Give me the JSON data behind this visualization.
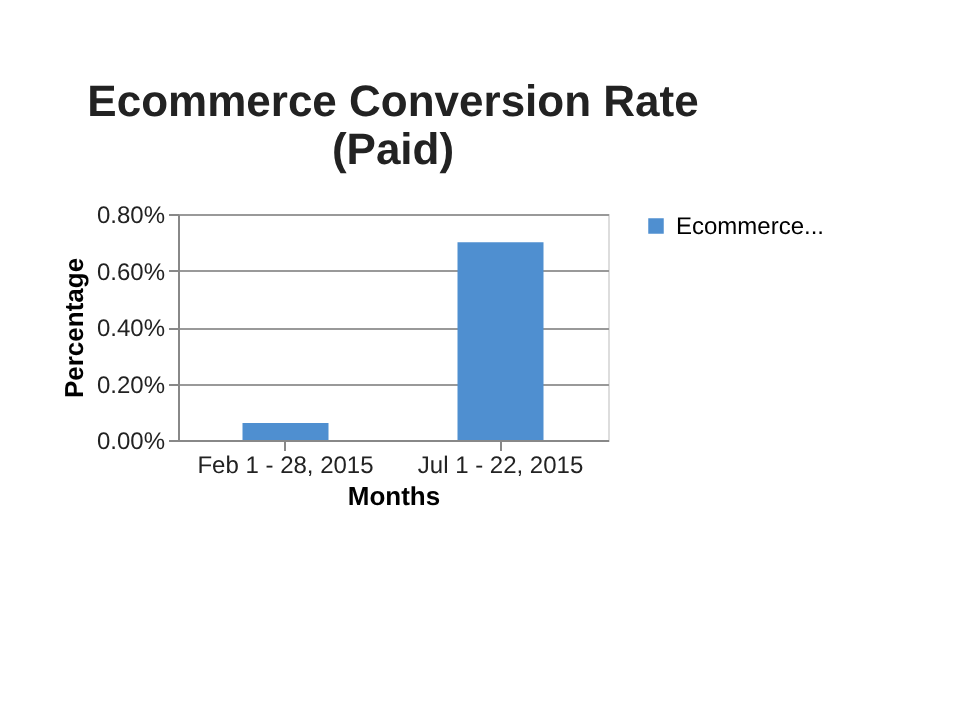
{
  "chart_data": {
    "type": "bar",
    "title": "Ecommerce Conversion Rate (Paid)",
    "xlabel": "Months",
    "ylabel": "Percentage",
    "categories": [
      "Feb 1 - 28, 2015",
      "Jul 1 - 22, 2015"
    ],
    "series": [
      {
        "name": "Ecommerce...",
        "color": "#4f8fd0",
        "values": [
          0.06,
          0.7
        ]
      }
    ],
    "ylim": [
      0,
      0.8
    ],
    "yticks": [
      {
        "value": 0,
        "label": "0.00%"
      },
      {
        "value": 0.2,
        "label": "0.20%"
      },
      {
        "value": 0.4,
        "label": "0.40%"
      },
      {
        "value": 0.6,
        "label": "0.60%"
      },
      {
        "value": 0.8,
        "label": "0.80%"
      }
    ],
    "grid": "y",
    "legend": "right"
  }
}
